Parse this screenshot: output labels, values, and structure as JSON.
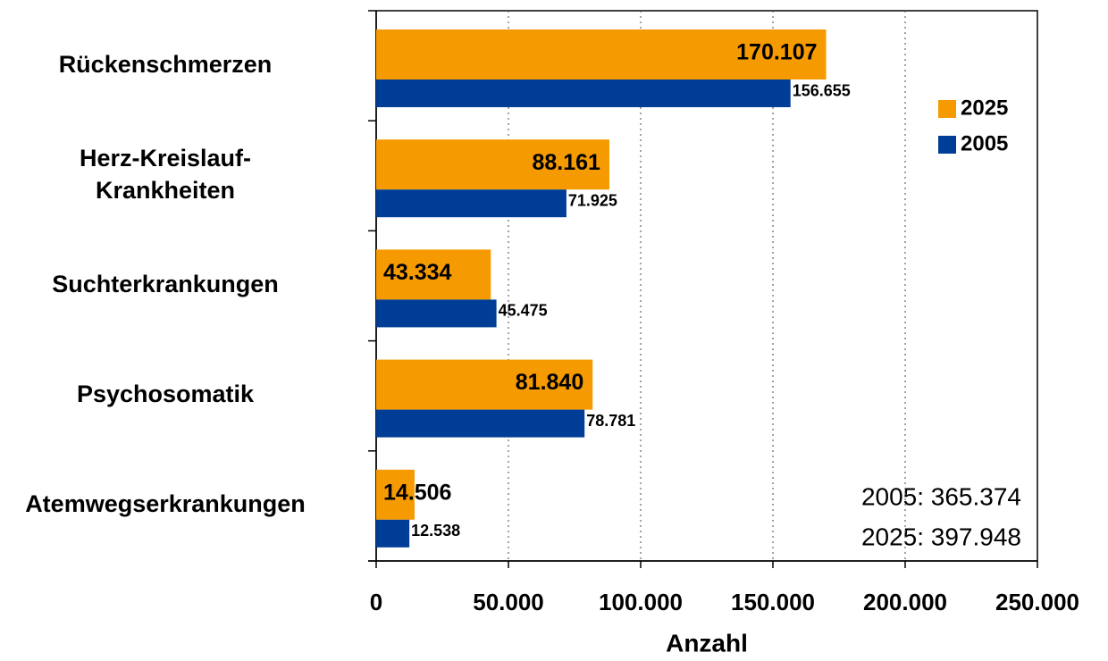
{
  "chart_data": {
    "type": "bar",
    "orientation": "horizontal",
    "categories": [
      "Rückenschmerzen",
      "Herz-Kreislauf-\nKrankheiten",
      "Suchterkrankungen",
      "Psychosomatik",
      "Atemwegserkrankungen"
    ],
    "series": [
      {
        "name": "2025",
        "color": "#f59a00",
        "values": [
          170107,
          88161,
          43334,
          81840,
          14506
        ],
        "value_labels": [
          "170.107",
          "88.161",
          "43.334",
          "81.840",
          "14.506"
        ]
      },
      {
        "name": "2005",
        "color": "#003d96",
        "values": [
          156655,
          71925,
          45475,
          78781,
          12538
        ],
        "value_labels": [
          "156.655",
          "71.925",
          "45.475",
          "78.781",
          "12.538"
        ]
      }
    ],
    "xlabel": "Anzahl",
    "xlim": [
      0,
      250000
    ],
    "xticks": [
      0,
      {
        "value": 50000,
        "label": "50.000"
      },
      {
        "value": 100000,
        "label": "100.000"
      },
      {
        "value": 150000,
        "label": "150.000"
      },
      {
        "value": 200000,
        "label": "200.000"
      },
      {
        "value": 250000,
        "label": "250.000"
      }
    ],
    "grid": true,
    "legend": "right",
    "annotations": [
      "2005: 365.374",
      "2025: 397.948"
    ]
  }
}
